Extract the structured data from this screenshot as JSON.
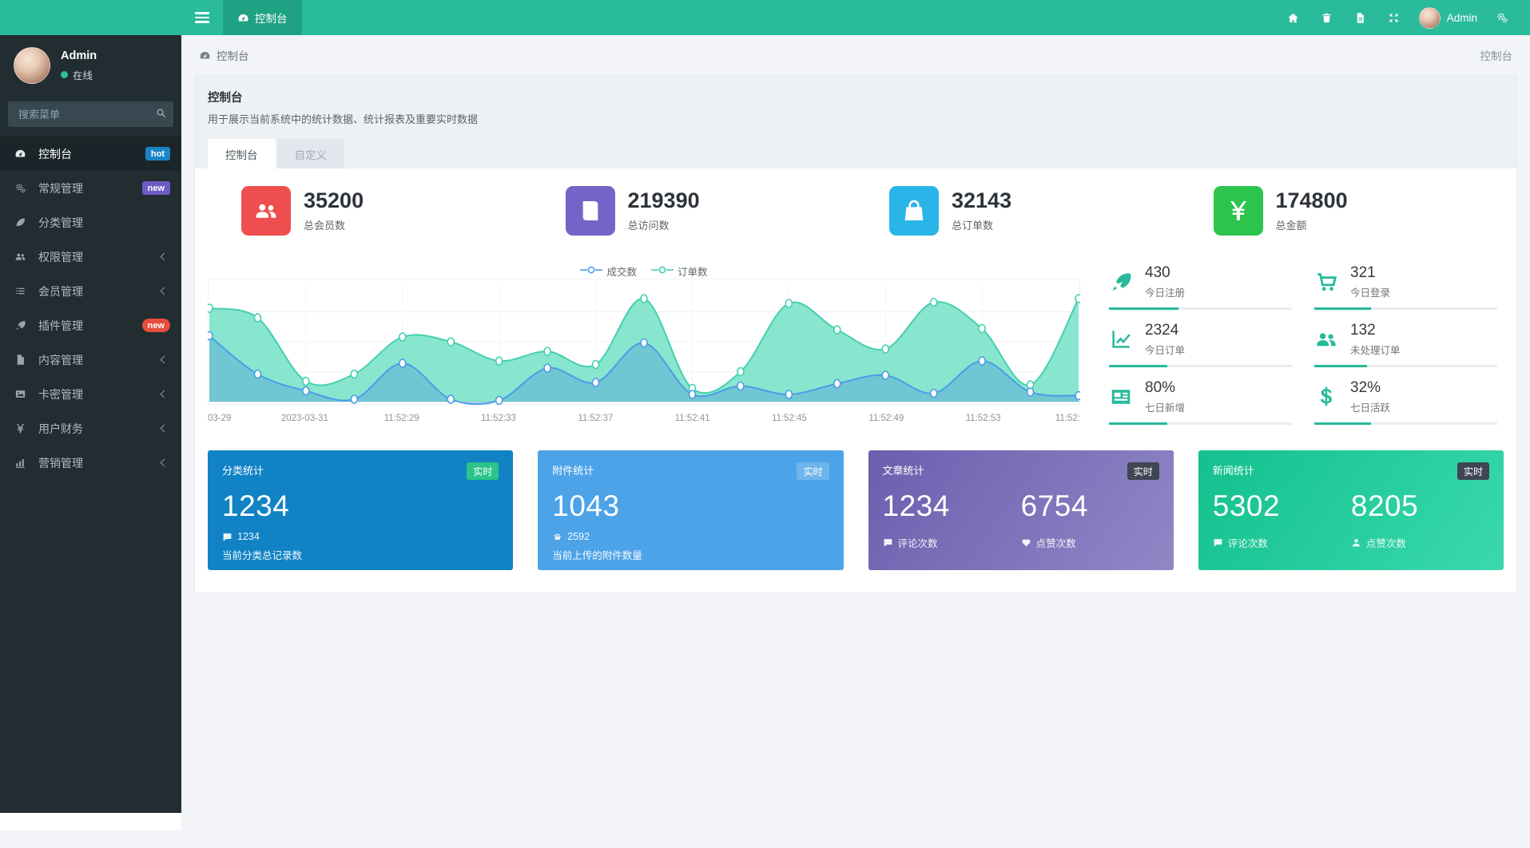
{
  "colors": {
    "navbar": "#29bb9c",
    "navbar_active_tab": "#1ea283",
    "sidebar": "#222d32",
    "accent_green": "#26b99a"
  },
  "navbar": {
    "tab": {
      "icon": "dashboard-icon",
      "label": "控制台"
    },
    "right_icons": [
      {
        "name": "home-icon"
      },
      {
        "name": "trash-icon"
      },
      {
        "name": "wipe-cache-icon"
      },
      {
        "name": "fullscreen-icon"
      }
    ],
    "user": {
      "name": "Admin"
    },
    "settings_icon": "gears-icon"
  },
  "sidebar": {
    "user": {
      "name": "Admin",
      "status": "在线"
    },
    "search": {
      "placeholder": "搜索菜单"
    },
    "menu": [
      {
        "icon": "dashboard-icon",
        "label": "控制台",
        "active": true,
        "badge": {
          "text": "hot",
          "color": "#1c84c6",
          "pill": false
        }
      },
      {
        "icon": "gears-icon",
        "label": "常规管理",
        "badge": {
          "text": "new",
          "color": "#6e5bc4",
          "pill": false
        }
      },
      {
        "icon": "leaf-icon",
        "label": "分类管理"
      },
      {
        "icon": "users-icon",
        "label": "权限管理",
        "chevron": true
      },
      {
        "icon": "list-icon",
        "label": "会员管理",
        "chevron": true
      },
      {
        "icon": "rocket-icon",
        "label": "插件管理",
        "badge": {
          "text": "new",
          "color": "#e74c3c",
          "pill": true
        }
      },
      {
        "icon": "file-icon",
        "label": "内容管理",
        "chevron": true
      },
      {
        "icon": "image-icon",
        "label": "卡密管理",
        "chevron": true
      },
      {
        "icon": "yen-icon",
        "label": "用户财务",
        "chevron": true
      },
      {
        "icon": "bar-chart-icon",
        "label": "营销管理",
        "chevron": true
      }
    ]
  },
  "breadcrumb": {
    "icon": "dashboard-icon",
    "label": "控制台",
    "right_label": "控制台"
  },
  "panel": {
    "title": "控制台",
    "description": "用于展示当前系统中的统计数据、统计报表及重要实时数据",
    "tabs": [
      {
        "label": "控制台",
        "active": true
      },
      {
        "label": "自定义",
        "active": false
      }
    ]
  },
  "stats": [
    {
      "icon": "users-icon",
      "color": "#ee4f4e",
      "value": "35200",
      "label": "总会员数"
    },
    {
      "icon": "book-icon",
      "color": "#7564c8",
      "value": "219390",
      "label": "总访问数"
    },
    {
      "icon": "shopping-bag-icon",
      "color": "#29b5e8",
      "value": "32143",
      "label": "总订单数"
    },
    {
      "icon": "yen-icon",
      "color": "#2dc44d",
      "value": "174800",
      "label": "总金额"
    }
  ],
  "chart_data": {
    "type": "area",
    "legend_position": "top",
    "grid": true,
    "ylim": [
      0,
      100
    ],
    "x_tick_labels": [
      "03-29",
      "2023-03-31",
      "11:52:29",
      "11:52:33",
      "11:52:37",
      "11:52:41",
      "11:52:45",
      "11:52:49",
      "11:52:53",
      "11:52:"
    ],
    "series": [
      {
        "name": "成交数",
        "color": "#4b9ce8",
        "fill": "rgba(73,150,220,0.38)",
        "values": [
          55,
          23,
          9,
          2,
          32,
          2,
          1,
          28,
          16,
          49,
          6,
          13,
          6,
          15,
          22,
          7,
          34,
          8,
          5
        ]
      },
      {
        "name": "订单数",
        "color": "#45d0ae",
        "fill": "rgba(130,228,203,0.95)",
        "values": [
          78,
          70,
          17,
          23,
          54,
          50,
          34,
          42,
          31,
          86,
          11,
          25,
          82,
          60,
          44,
          83,
          61,
          14,
          86
        ]
      }
    ]
  },
  "quick_stats": [
    {
      "icon": "rocket-icon",
      "value": "430",
      "label": "今日注册",
      "progress": 38
    },
    {
      "icon": "cart-icon",
      "value": "321",
      "label": "今日登录",
      "progress": 31
    },
    {
      "icon": "line-chart-icon",
      "value": "2324",
      "label": "今日订单",
      "progress": 32
    },
    {
      "icon": "users-icon",
      "value": "132",
      "label": "未处理订单",
      "progress": 29
    },
    {
      "icon": "newspaper-icon",
      "value": "80%",
      "label": "七日新增",
      "progress": 32
    },
    {
      "icon": "dollar-icon",
      "value": "32%",
      "label": "七日活跃",
      "progress": 31
    }
  ],
  "summary_cards": [
    {
      "title": "分类统计",
      "badge": "实时",
      "badge_color": "#2bc48a",
      "background": "#1183c5",
      "value": "1234",
      "meta_icon": "comment-icon",
      "meta": "1234",
      "footer": "当前分类总记录数"
    },
    {
      "title": "附件统计",
      "badge": "实时",
      "badge_color": "#6db5ec",
      "background": "#4da3e8",
      "value": "1043",
      "meta_icon": "paw-icon",
      "meta": "2592",
      "footer": "当前上传的附件数量"
    },
    {
      "title": "文章统计",
      "badge": "实时",
      "badge_color": "#3f4553",
      "background": "linear-gradient(125deg,#6b5fae 0%,#9087c6 100%)",
      "columns": [
        {
          "value": "1234",
          "icon": "comment-icon",
          "label": "评论次数"
        },
        {
          "value": "6754",
          "icon": "heart-icon",
          "label": "点赞次数"
        }
      ]
    },
    {
      "title": "新闻统计",
      "badge": "实时",
      "badge_color": "#3f4553",
      "background": "linear-gradient(125deg,#13c08e 0%,#3ad9ad 100%)",
      "columns": [
        {
          "value": "5302",
          "icon": "comment-icon",
          "label": "评论次数"
        },
        {
          "value": "8205",
          "icon": "user-icon",
          "label": "点赞次数"
        }
      ]
    }
  ]
}
